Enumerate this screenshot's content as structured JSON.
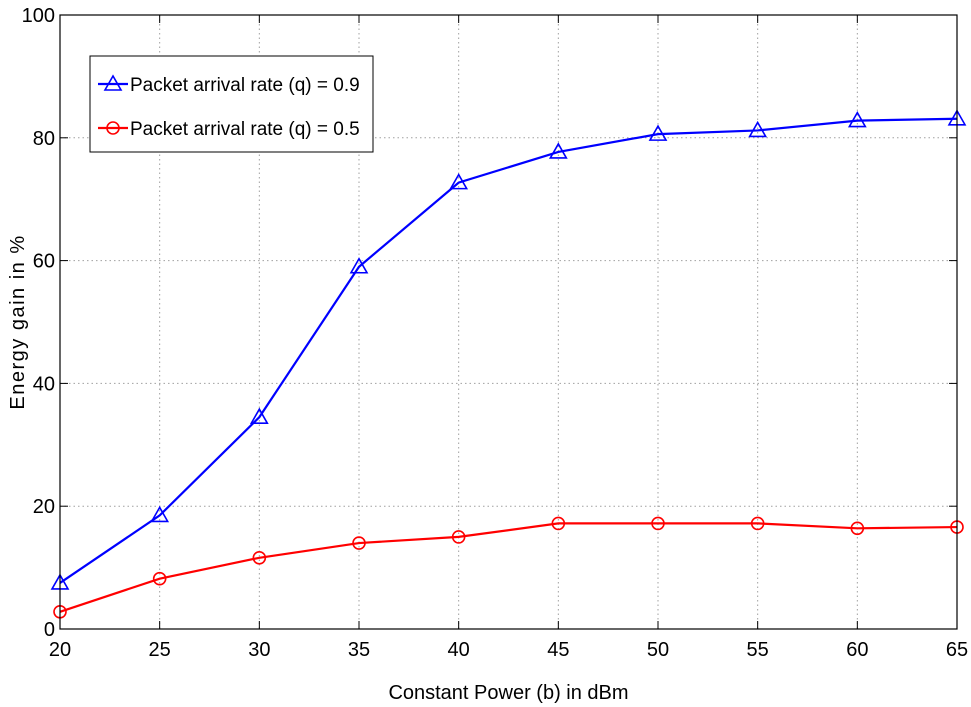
{
  "chart_data": {
    "type": "line",
    "xlabel": "Constant Power (b) in dBm",
    "ylabel": "Energy gain in %",
    "xlim": [
      20,
      65
    ],
    "ylim": [
      0,
      100
    ],
    "xticks": [
      20,
      25,
      30,
      35,
      40,
      45,
      50,
      55,
      60,
      65
    ],
    "yticks": [
      0,
      20,
      40,
      60,
      80,
      100
    ],
    "grid": true,
    "legend_position": "top-left",
    "x": [
      20,
      25,
      30,
      35,
      40,
      45,
      50,
      55,
      60,
      65
    ],
    "series": [
      {
        "name": "Packet arrival rate (q) = 0.9",
        "color": "#0000ff",
        "marker": "triangle",
        "values": [
          7.5,
          18.5,
          34.5,
          59.0,
          72.7,
          77.7,
          80.6,
          81.2,
          82.8,
          83.1
        ]
      },
      {
        "name": "Packet arrival rate (q) = 0.5",
        "color": "#ff0000",
        "marker": "circle",
        "values": [
          2.8,
          8.2,
          11.6,
          14.0,
          15.0,
          17.2,
          17.2,
          17.2,
          16.4,
          16.6
        ]
      }
    ]
  }
}
